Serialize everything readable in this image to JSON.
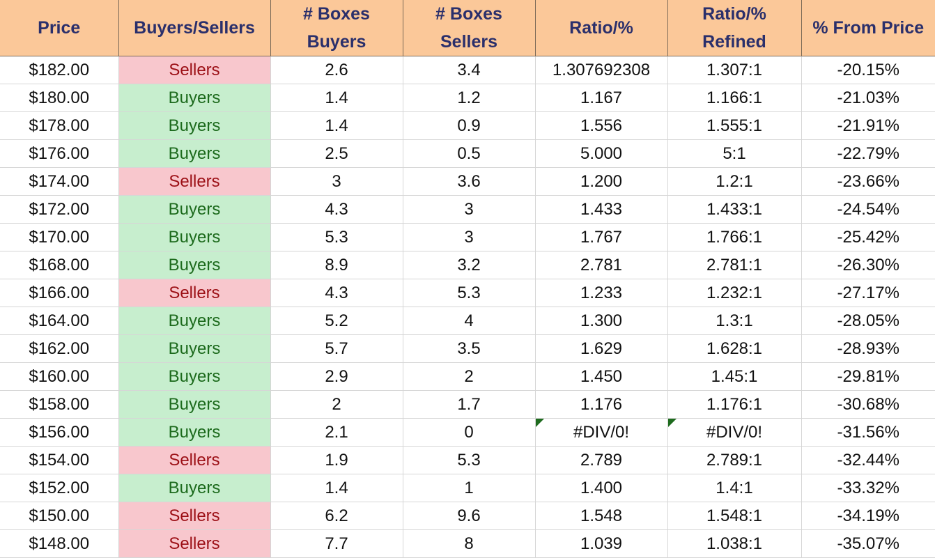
{
  "colors": {
    "header_bg": "#fbc899",
    "header_text": "#2a2f6b",
    "sellers_bg": "#f8c7cd",
    "sellers_text": "#9c1016",
    "buyers_bg": "#c7eece",
    "buyers_text": "#1c6a1c",
    "error_flag": "#1e6b1e"
  },
  "headers": [
    [
      "Price"
    ],
    [
      "Buyers/Sellers"
    ],
    [
      "# Boxes",
      "Buyers"
    ],
    [
      "# Boxes",
      "Sellers"
    ],
    [
      "Ratio/%"
    ],
    [
      "Ratio/%",
      "Refined"
    ],
    [
      "% From Price"
    ]
  ],
  "rows": [
    {
      "price": "$182.00",
      "side": "Sellers",
      "boxes_buyers": "2.6",
      "boxes_sellers": "3.4",
      "ratio": "1.307692308",
      "ratio_refined": "1.307:1",
      "from_price": "-20.15%"
    },
    {
      "price": "$180.00",
      "side": "Buyers",
      "boxes_buyers": "1.4",
      "boxes_sellers": "1.2",
      "ratio": "1.167",
      "ratio_refined": "1.166:1",
      "from_price": "-21.03%"
    },
    {
      "price": "$178.00",
      "side": "Buyers",
      "boxes_buyers": "1.4",
      "boxes_sellers": "0.9",
      "ratio": "1.556",
      "ratio_refined": "1.555:1",
      "from_price": "-21.91%"
    },
    {
      "price": "$176.00",
      "side": "Buyers",
      "boxes_buyers": "2.5",
      "boxes_sellers": "0.5",
      "ratio": "5.000",
      "ratio_refined": "5:1",
      "from_price": "-22.79%"
    },
    {
      "price": "$174.00",
      "side": "Sellers",
      "boxes_buyers": "3",
      "boxes_sellers": "3.6",
      "ratio": "1.200",
      "ratio_refined": "1.2:1",
      "from_price": "-23.66%"
    },
    {
      "price": "$172.00",
      "side": "Buyers",
      "boxes_buyers": "4.3",
      "boxes_sellers": "3",
      "ratio": "1.433",
      "ratio_refined": "1.433:1",
      "from_price": "-24.54%"
    },
    {
      "price": "$170.00",
      "side": "Buyers",
      "boxes_buyers": "5.3",
      "boxes_sellers": "3",
      "ratio": "1.767",
      "ratio_refined": "1.766:1",
      "from_price": "-25.42%"
    },
    {
      "price": "$168.00",
      "side": "Buyers",
      "boxes_buyers": "8.9",
      "boxes_sellers": "3.2",
      "ratio": "2.781",
      "ratio_refined": "2.781:1",
      "from_price": "-26.30%"
    },
    {
      "price": "$166.00",
      "side": "Sellers",
      "boxes_buyers": "4.3",
      "boxes_sellers": "5.3",
      "ratio": "1.233",
      "ratio_refined": "1.232:1",
      "from_price": "-27.17%"
    },
    {
      "price": "$164.00",
      "side": "Buyers",
      "boxes_buyers": "5.2",
      "boxes_sellers": "4",
      "ratio": "1.300",
      "ratio_refined": "1.3:1",
      "from_price": "-28.05%"
    },
    {
      "price": "$162.00",
      "side": "Buyers",
      "boxes_buyers": "5.7",
      "boxes_sellers": "3.5",
      "ratio": "1.629",
      "ratio_refined": "1.628:1",
      "from_price": "-28.93%"
    },
    {
      "price": "$160.00",
      "side": "Buyers",
      "boxes_buyers": "2.9",
      "boxes_sellers": "2",
      "ratio": "1.450",
      "ratio_refined": "1.45:1",
      "from_price": "-29.81%"
    },
    {
      "price": "$158.00",
      "side": "Buyers",
      "boxes_buyers": "2",
      "boxes_sellers": "1.7",
      "ratio": "1.176",
      "ratio_refined": "1.176:1",
      "from_price": "-30.68%"
    },
    {
      "price": "$156.00",
      "side": "Buyers",
      "boxes_buyers": "2.1",
      "boxes_sellers": "0",
      "ratio": "#DIV/0!",
      "ratio_refined": "#DIV/0!",
      "from_price": "-31.56%",
      "error": true
    },
    {
      "price": "$154.00",
      "side": "Sellers",
      "boxes_buyers": "1.9",
      "boxes_sellers": "5.3",
      "ratio": "2.789",
      "ratio_refined": "2.789:1",
      "from_price": "-32.44%"
    },
    {
      "price": "$152.00",
      "side": "Buyers",
      "boxes_buyers": "1.4",
      "boxes_sellers": "1",
      "ratio": "1.400",
      "ratio_refined": "1.4:1",
      "from_price": "-33.32%"
    },
    {
      "price": "$150.00",
      "side": "Sellers",
      "boxes_buyers": "6.2",
      "boxes_sellers": "9.6",
      "ratio": "1.548",
      "ratio_refined": "1.548:1",
      "from_price": "-34.19%"
    },
    {
      "price": "$148.00",
      "side": "Sellers",
      "boxes_buyers": "7.7",
      "boxes_sellers": "8",
      "ratio": "1.039",
      "ratio_refined": "1.038:1",
      "from_price": "-35.07%"
    }
  ]
}
